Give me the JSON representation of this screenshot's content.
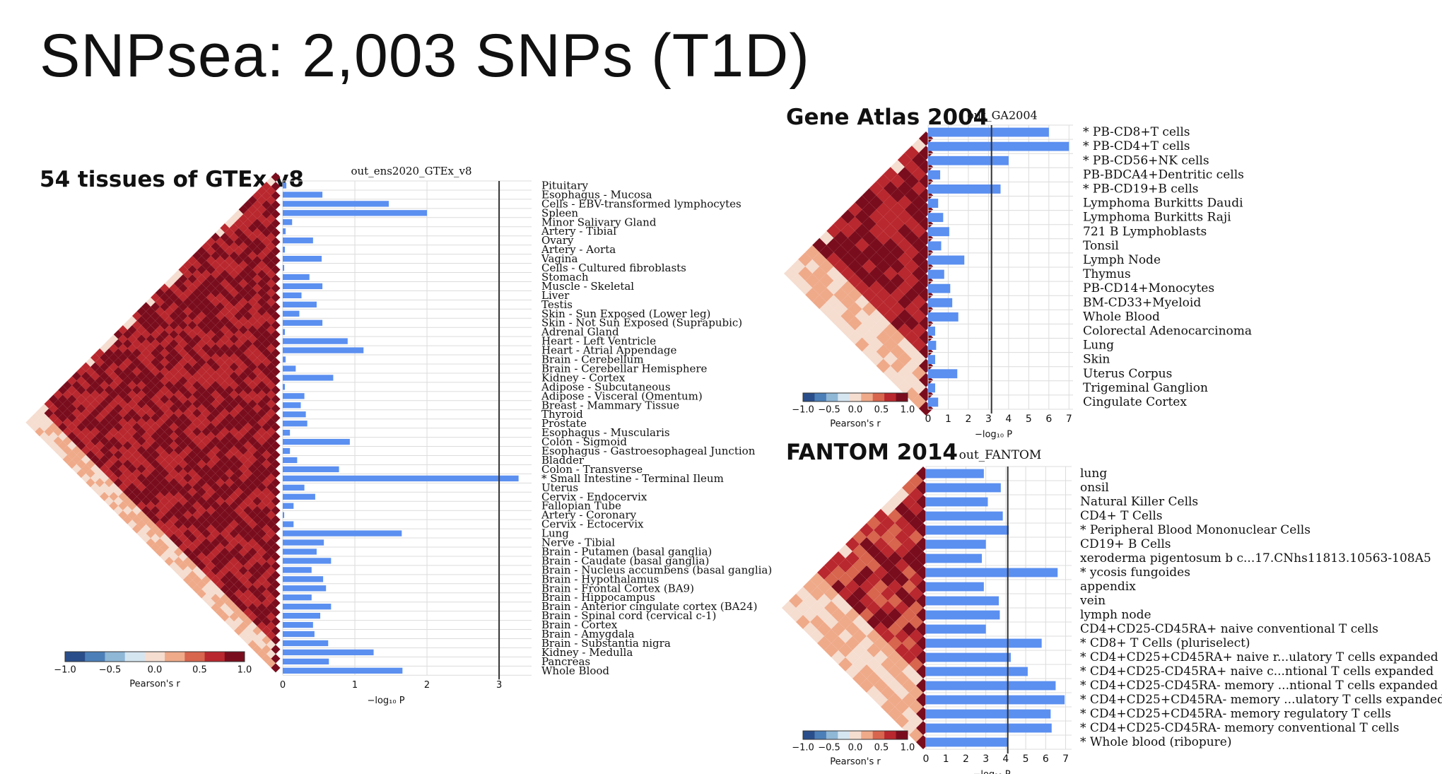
{
  "slide_title": "SNPsea: 2,003 SNPs (T1D)",
  "panels": {
    "gtex": {
      "label": "54 tissues of GTEx v8"
    },
    "ga": {
      "label": "Gene Atlas 2004"
    },
    "fantom": {
      "label": "FANTOM 2014"
    }
  },
  "colors": {
    "bar": "#5b8ff0",
    "threshold_line": "#333333",
    "grid": "#dcdcdc",
    "colorscale": [
      "#2a4e8a",
      "#4c7fb8",
      "#8fb7d6",
      "#d6e6f1",
      "#f5ddd0",
      "#efaa8a",
      "#d8654e",
      "#b9282e",
      "#7a0d1d"
    ]
  },
  "chart_data": [
    {
      "type": "bar",
      "orientation": "horizontal",
      "title": "out_ens2020_GTEx_v8",
      "xlabel": "−log₁₀ P",
      "xlim": [
        0,
        3.45
      ],
      "xticks": [
        0,
        1,
        2,
        3
      ],
      "threshold": 3.0,
      "grid": true,
      "colorbar": {
        "label": "Pearson's r",
        "ticks": [
          "−1.0",
          "−0.5",
          "0.0",
          "0.5",
          "1.0"
        ]
      },
      "categories": [
        "Pituitary",
        "Esophagus - Mucosa",
        "Cells - EBV-transformed lymphocytes",
        "Spleen",
        "Minor Salivary Gland",
        "Artery - Tibial",
        "Ovary",
        "Artery - Aorta",
        "Vagina",
        "Cells - Cultured fibroblasts",
        "Stomach",
        "Muscle - Skeletal",
        "Liver",
        "Testis",
        "Skin - Sun Exposed (Lower leg)",
        "Skin - Not Sun Exposed (Suprapubic)",
        "Adrenal Gland",
        "Heart - Left Ventricle",
        "Heart - Atrial Appendage",
        "Brain - Cerebellum",
        "Brain - Cerebellar Hemisphere",
        "Kidney - Cortex",
        "Adipose - Subcutaneous",
        "Adipose - Visceral (Omentum)",
        "Breast - Mammary Tissue",
        "Thyroid",
        "Prostate",
        "Esophagus - Muscularis",
        "Colon - Sigmoid",
        "Esophagus - Gastroesophageal Junction",
        "Bladder",
        "Colon - Transverse",
        "* Small Intestine - Terminal Ileum",
        "Uterus",
        "Cervix - Endocervix",
        "Fallopian Tube",
        "Artery - Coronary",
        "Cervix - Ectocervix",
        "Lung",
        "Nerve - Tibial",
        "Brain - Putamen (basal ganglia)",
        "Brain - Caudate (basal ganglia)",
        "Brain - Nucleus accumbens (basal ganglia)",
        "Brain - Hypothalamus",
        "Brain - Frontal Cortex (BA9)",
        "Brain - Hippocampus",
        "Brain - Anterior cingulate cortex (BA24)",
        "Brain - Spinal cord (cervical c-1)",
        "Brain - Cortex",
        "Brain - Amygdala",
        "Brain - Substantia nigra",
        "Kidney - Medulla",
        "Pancreas",
        "Whole Blood"
      ],
      "values": [
        0.05,
        0.55,
        1.47,
        2.0,
        0.13,
        0.04,
        0.42,
        0.03,
        0.54,
        0.02,
        0.37,
        0.55,
        0.26,
        0.47,
        0.23,
        0.55,
        0.03,
        0.9,
        1.12,
        0.04,
        0.18,
        0.7,
        0.03,
        0.3,
        0.25,
        0.32,
        0.34,
        0.1,
        0.93,
        0.1,
        0.2,
        0.78,
        3.27,
        0.3,
        0.45,
        0.15,
        0.02,
        0.15,
        1.65,
        0.57,
        0.47,
        0.67,
        0.4,
        0.56,
        0.6,
        0.4,
        0.67,
        0.52,
        0.42,
        0.44,
        0.63,
        1.26,
        0.64,
        1.66
      ]
    },
    {
      "type": "bar",
      "orientation": "horizontal",
      "title": "out_GA2004",
      "xlabel": "−log₁₀ P",
      "xlim": [
        0,
        7.2
      ],
      "xticks": [
        0,
        1,
        2,
        3,
        4,
        5,
        6,
        7
      ],
      "threshold": 3.15,
      "grid": true,
      "colorbar": {
        "label": "Pearson's r",
        "ticks": [
          "−1.0",
          "−0.5",
          "0.0",
          "0.5",
          "1.0"
        ]
      },
      "categories": [
        "* PB-CD8+T cells",
        "* PB-CD4+T cells",
        "* PB-CD56+NK cells",
        "PB-BDCA4+Dentritic cells",
        "* PB-CD19+B cells",
        "Lymphoma Burkitts Daudi",
        "Lymphoma Burkitts Raji",
        "721 B Lymphoblasts",
        "Tonsil",
        "Lymph Node",
        "Thymus",
        "PB-CD14+Monocytes",
        "BM-CD33+Myeloid",
        "Whole Blood",
        "Colorectal Adenocarcinoma",
        "Lung",
        "Skin",
        "Uterus Corpus",
        "Trigeminal Ganglion",
        "Cingulate Cortex"
      ],
      "values": [
        6.0,
        7.0,
        4.0,
        0.6,
        3.6,
        0.5,
        0.75,
        1.05,
        0.65,
        1.8,
        0.8,
        1.1,
        1.2,
        1.5,
        0.35,
        0.4,
        0.35,
        1.45,
        0.35,
        0.5
      ]
    },
    {
      "type": "bar",
      "orientation": "horizontal",
      "title": "out_FANTOM",
      "xlabel": "−log₁₀ P",
      "xlim": [
        0,
        7.3
      ],
      "xticks": [
        0,
        1,
        2,
        3,
        4,
        5,
        6,
        7
      ],
      "threshold": 4.1,
      "grid": true,
      "colorbar": {
        "label": "Pearson's r",
        "ticks": [
          "−1.0",
          "−0.5",
          "0.0",
          "0.5",
          "1.0"
        ]
      },
      "categories": [
        "lung",
        "onsil",
        "Natural Killer Cells",
        "CD4+ T Cells",
        "* Peripheral Blood Mononuclear Cells",
        "CD19+ B Cells",
        "xeroderma pigentosum b c...17.CNhs11813.10563-108A5",
        "* ycosis fungoides",
        "appendix",
        "vein",
        "lymph node",
        "CD4+CD25-CD45RA+ naive conventional T cells",
        "* CD8+ T Cells (pluriselect)",
        "* CD4+CD25+CD45RA+ naive r...ulatory T cells expanded",
        "* CD4+CD25-CD45RA+ naive c...ntional T cells expanded",
        "* CD4+CD25-CD45RA- memory ...ntional T cells expanded",
        "* CD4+CD25+CD45RA- memory ...ulatory T cells expanded",
        "* CD4+CD25+CD45RA- memory regulatory T cells",
        "* CD4+CD25-CD45RA- memory conventional T cells",
        "* Whole blood (ribopure)"
      ],
      "values": [
        2.9,
        3.75,
        3.1,
        3.85,
        4.15,
        3.0,
        2.8,
        6.6,
        2.9,
        3.65,
        3.7,
        3.0,
        5.8,
        4.25,
        5.1,
        6.5,
        6.95,
        6.25,
        6.3,
        4.1
      ]
    }
  ]
}
